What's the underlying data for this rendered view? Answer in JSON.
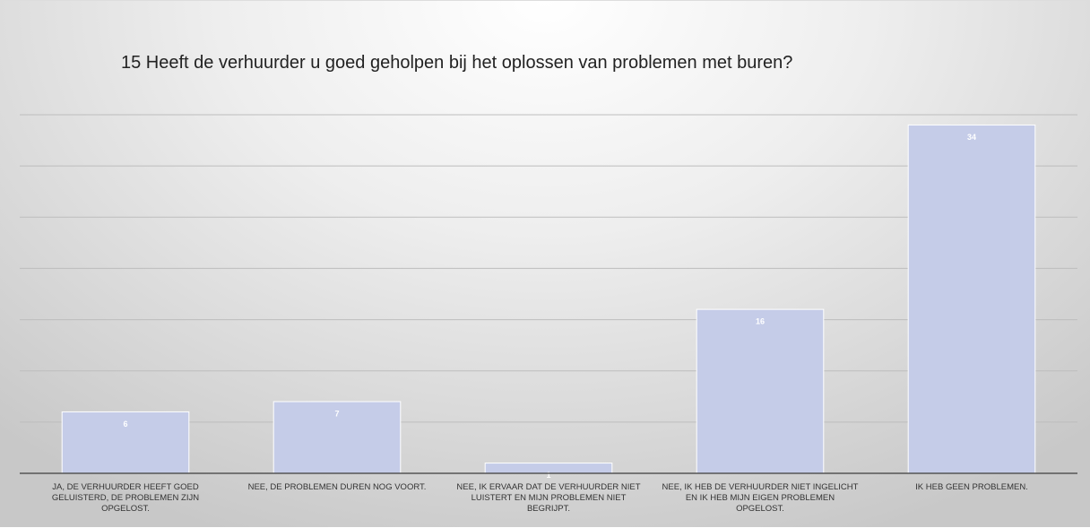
{
  "chart_data": {
    "type": "bar",
    "title": "15 Heeft de verhuurder u goed geholpen bij het oplossen van problemen met buren?",
    "categories": [
      "JA, DE VERHUURDER HEEFT GOED GELUISTERD, DE PROBLEMEN ZIJN OPGELOST.",
      "NEE, DE PROBLEMEN DUREN NOG VOORT.",
      "NEE, IK ERVAAR DAT DE VERHUURDER NIET LUISTERT EN MIJN PROBLEMEN NIET BEGRIJPT.",
      "NEE, IK HEB DE VERHUURDER NIET INGELICHT EN IK HEB MIJN EIGEN PROBLEMEN OPGELOST.",
      "IK HEB GEEN PROBLEMEN."
    ],
    "values": [
      6,
      7,
      1,
      16,
      34
    ],
    "color": "#c5cce8",
    "ylim": [
      0,
      35
    ],
    "yticks": [
      0,
      5,
      10,
      15,
      20,
      25,
      30,
      35
    ],
    "grid": true
  }
}
